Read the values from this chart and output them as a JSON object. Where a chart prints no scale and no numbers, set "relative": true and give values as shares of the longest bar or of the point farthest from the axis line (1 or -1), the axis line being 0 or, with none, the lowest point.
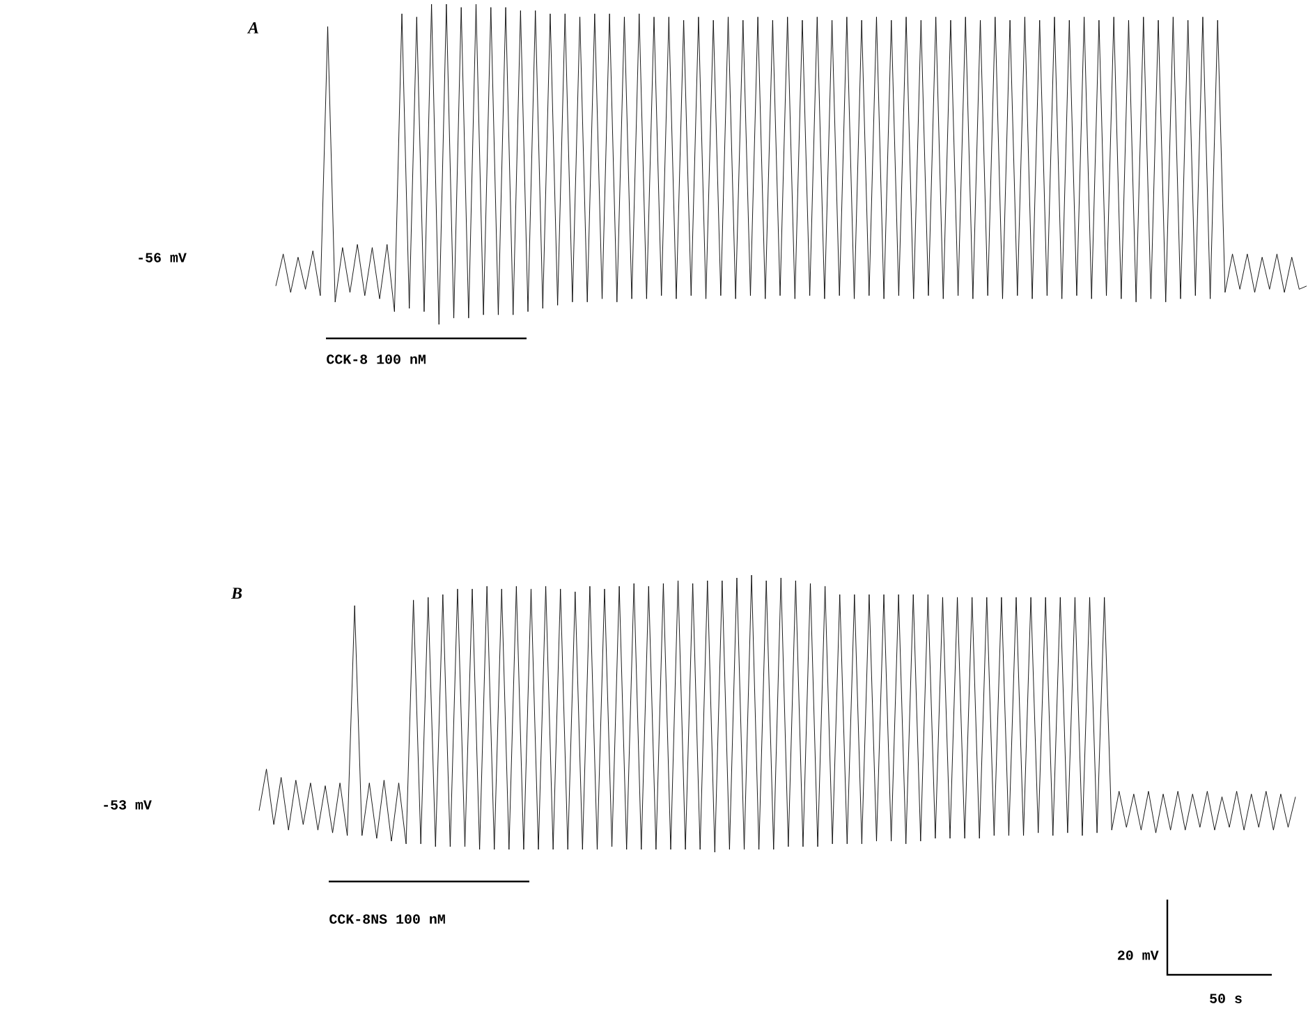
{
  "chart_data": [
    {
      "type": "line",
      "title": "A",
      "relative": true,
      "annotations": [
        "-56 mV",
        "CCK-8 100 nM"
      ],
      "categories": [
        null,
        null,
        null,
        null,
        null,
        null,
        null,
        null,
        null,
        null,
        null,
        null,
        null,
        null,
        null,
        null,
        null,
        null,
        null,
        null,
        null,
        null,
        null,
        null,
        null,
        null,
        null,
        null,
        null,
        null,
        null,
        null,
        null,
        null,
        null,
        null,
        null,
        null,
        null,
        null,
        null,
        null,
        null,
        null,
        null,
        null,
        null,
        null,
        null,
        null,
        null,
        null,
        null,
        null,
        null,
        null,
        null,
        null,
        null,
        null,
        null,
        null,
        null,
        null,
        null,
        null,
        null,
        null,
        null,
        null,
        null,
        null,
        null,
        null,
        null,
        null,
        null,
        null,
        null,
        null,
        null,
        null,
        null,
        null,
        null,
        null,
        null,
        null,
        null,
        null,
        null,
        null,
        null,
        null,
        null,
        null,
        null,
        null,
        null,
        null,
        null,
        null,
        null,
        null,
        null,
        null,
        null,
        null,
        null,
        null,
        null,
        null,
        null,
        null,
        null,
        null,
        null,
        null,
        null,
        null,
        null,
        null,
        null,
        null,
        null,
        null,
        null,
        null,
        null,
        null,
        null,
        null,
        null,
        null,
        null,
        null,
        null,
        null,
        null,
        null
      ],
      "series": [
        {
          "color": "#000000",
          "values": [
            0.12,
            0.22,
            0.1,
            0.21,
            0.11,
            0.23,
            0.09,
            0.93,
            0.07,
            0.24,
            0.1,
            0.25,
            0.09,
            0.24,
            0.08,
            0.25,
            0.04,
            0.97,
            0.05,
            0.96,
            0.04,
            1.0,
            0.0,
            1.0,
            0.02,
            0.99,
            0.02,
            1.0,
            0.03,
            0.99,
            0.03,
            0.99,
            0.03,
            0.98,
            0.04,
            0.98,
            0.05,
            0.97,
            0.06,
            0.97,
            0.07,
            0.96,
            0.07,
            0.97,
            0.08,
            0.97,
            0.07,
            0.96,
            0.08,
            0.97,
            0.08,
            0.96,
            0.09,
            0.96,
            0.08,
            0.95,
            0.09,
            0.96,
            0.08,
            0.95,
            0.09,
            0.96,
            0.08,
            0.95,
            0.09,
            0.96,
            0.08,
            0.95,
            0.09,
            0.96,
            0.08,
            0.95,
            0.09,
            0.96,
            0.08,
            0.95,
            0.09,
            0.96,
            0.08,
            0.95,
            0.09,
            0.96,
            0.08,
            0.95,
            0.09,
            0.96,
            0.08,
            0.95,
            0.09,
            0.96,
            0.08,
            0.95,
            0.09,
            0.96,
            0.08,
            0.95,
            0.09,
            0.96,
            0.08,
            0.95,
            0.09,
            0.96,
            0.08,
            0.95,
            0.09,
            0.96,
            0.08,
            0.95,
            0.09,
            0.96,
            0.08,
            0.95,
            0.09,
            0.96,
            0.08,
            0.95,
            0.07,
            0.96,
            0.08,
            0.95,
            0.07,
            0.96,
            0.08,
            0.95,
            0.09,
            0.96,
            0.08,
            0.95,
            0.1,
            0.22,
            0.11,
            0.22,
            0.1,
            0.21,
            0.11,
            0.22,
            0.1,
            0.21,
            0.11,
            0.12
          ]
        }
      ]
    },
    {
      "type": "line",
      "title": "B",
      "relative": true,
      "annotations": [
        "-53 mV",
        "CCK-8NS 100 nM",
        "20 mV",
        "50 s"
      ],
      "categories": [
        null,
        null,
        null,
        null,
        null,
        null,
        null,
        null,
        null,
        null,
        null,
        null,
        null,
        null,
        null,
        null,
        null,
        null,
        null,
        null,
        null,
        null,
        null,
        null,
        null,
        null,
        null,
        null,
        null,
        null,
        null,
        null,
        null,
        null,
        null,
        null,
        null,
        null,
        null,
        null,
        null,
        null,
        null,
        null,
        null,
        null,
        null,
        null,
        null,
        null,
        null,
        null,
        null,
        null,
        null,
        null,
        null,
        null,
        null,
        null,
        null,
        null,
        null,
        null,
        null,
        null,
        null,
        null,
        null,
        null,
        null,
        null,
        null,
        null,
        null,
        null,
        null,
        null,
        null,
        null,
        null,
        null,
        null,
        null,
        null,
        null,
        null,
        null,
        null,
        null,
        null,
        null,
        null,
        null,
        null,
        null,
        null,
        null,
        null,
        null,
        null,
        null,
        null,
        null,
        null,
        null,
        null,
        null,
        null,
        null,
        null,
        null,
        null,
        null,
        null,
        null,
        null,
        null,
        null,
        null,
        null,
        null,
        null,
        null,
        null,
        null,
        null,
        null,
        null,
        null,
        null,
        null,
        null,
        null,
        null,
        null,
        null,
        null,
        null,
        null,
        null,
        null
      ],
      "series": [
        {
          "color": "#000000",
          "values": [
            0.15,
            0.3,
            0.1,
            0.27,
            0.08,
            0.26,
            0.1,
            0.25,
            0.08,
            0.24,
            0.07,
            0.25,
            0.06,
            0.89,
            0.06,
            0.25,
            0.05,
            0.26,
            0.04,
            0.25,
            0.03,
            0.91,
            0.03,
            0.92,
            0.02,
            0.93,
            0.02,
            0.95,
            0.02,
            0.95,
            0.01,
            0.96,
            0.01,
            0.95,
            0.01,
            0.96,
            0.01,
            0.95,
            0.01,
            0.96,
            0.01,
            0.95,
            0.01,
            0.94,
            0.01,
            0.96,
            0.01,
            0.95,
            0.02,
            0.96,
            0.01,
            0.97,
            0.01,
            0.96,
            0.01,
            0.97,
            0.01,
            0.98,
            0.01,
            0.97,
            0.01,
            0.98,
            0.0,
            0.98,
            0.01,
            0.99,
            0.01,
            1.0,
            0.01,
            0.98,
            0.01,
            0.99,
            0.02,
            0.98,
            0.02,
            0.97,
            0.02,
            0.96,
            0.03,
            0.93,
            0.03,
            0.93,
            0.03,
            0.93,
            0.04,
            0.93,
            0.04,
            0.93,
            0.03,
            0.93,
            0.04,
            0.93,
            0.05,
            0.92,
            0.05,
            0.92,
            0.05,
            0.92,
            0.05,
            0.92,
            0.06,
            0.92,
            0.06,
            0.92,
            0.06,
            0.92,
            0.07,
            0.92,
            0.06,
            0.92,
            0.07,
            0.92,
            0.06,
            0.92,
            0.07,
            0.92,
            0.08,
            0.22,
            0.09,
            0.21,
            0.08,
            0.22,
            0.07,
            0.21,
            0.08,
            0.22,
            0.08,
            0.21,
            0.09,
            0.22,
            0.08,
            0.2,
            0.09,
            0.22,
            0.08,
            0.21,
            0.09,
            0.22,
            0.08,
            0.21,
            0.09,
            0.2
          ]
        }
      ]
    }
  ]
}
